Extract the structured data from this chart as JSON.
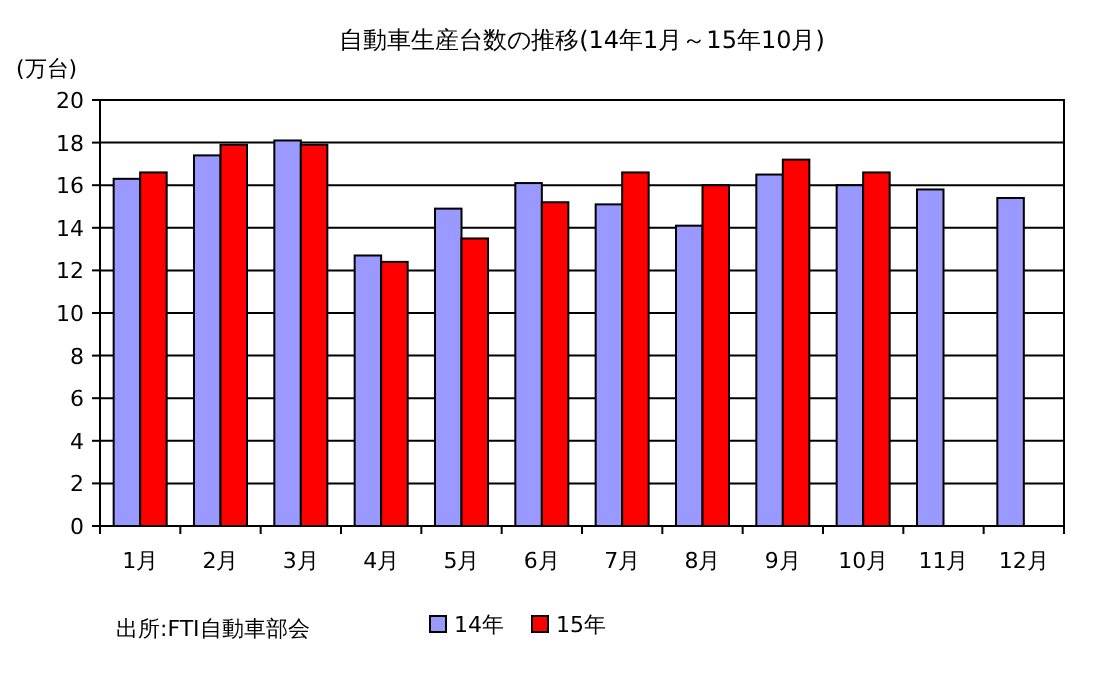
{
  "chart_data": {
    "type": "bar",
    "title": "自動車生産台数の推移(14年1月～15年10月)",
    "ylabel": "(万台)",
    "categories": [
      "1月",
      "2月",
      "3月",
      "4月",
      "5月",
      "6月",
      "7月",
      "8月",
      "9月",
      "10月",
      "11月",
      "12月"
    ],
    "series": [
      {
        "name": "14年",
        "color": "#9999ff",
        "values": [
          16.3,
          17.4,
          18.1,
          12.7,
          14.9,
          16.1,
          15.1,
          14.1,
          16.5,
          16.0,
          15.8,
          15.4
        ]
      },
      {
        "name": "15年",
        "color": "#ff0000",
        "values": [
          16.6,
          17.9,
          17.9,
          12.4,
          13.5,
          15.2,
          16.6,
          16.0,
          17.2,
          16.6,
          null,
          null
        ]
      }
    ],
    "ylim": [
      0,
      20
    ],
    "yticks": [
      0,
      2,
      4,
      6,
      8,
      10,
      12,
      14,
      16,
      18,
      20
    ],
    "grid": "y",
    "legend": "bottom",
    "annotations": [
      "出所:FTI自動車部会"
    ]
  }
}
